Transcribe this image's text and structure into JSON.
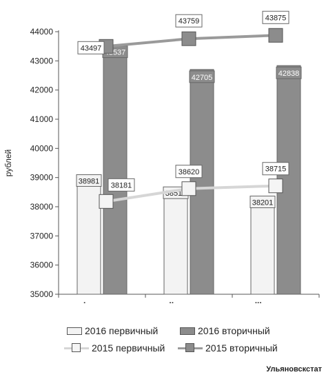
{
  "chart_data": {
    "type": "bar",
    "categories": [
      "I квартал",
      "II квартал",
      "III квартал"
    ],
    "ylabel": "рублей",
    "ylim": [
      35000,
      44000
    ],
    "yticks": [
      35000,
      36000,
      37000,
      38000,
      39000,
      40000,
      41000,
      42000,
      43000,
      44000
    ],
    "bars": [
      {
        "name": "2016 первичный",
        "values": [
          38981,
          38515,
          38201
        ],
        "color": "#f3f3f3"
      },
      {
        "name": "2016 вторичный",
        "values": [
          43537,
          42705,
          42838
        ],
        "color": "#8c8c8c"
      }
    ],
    "lines": [
      {
        "name": "2015 первичный",
        "values": [
          38181,
          38620,
          38715
        ],
        "color": "#d6d6d6",
        "marker_color": "#f5f5f5"
      },
      {
        "name": "2015 вторичный",
        "values": [
          43497,
          43759,
          43875
        ],
        "color": "#9a9a9a",
        "marker_color": "#8c8c8c"
      }
    ],
    "legend_position": "bottom",
    "grid": false
  },
  "legend": {
    "items": [
      {
        "label": "2016 первичный"
      },
      {
        "label": "2016 вторичный"
      },
      {
        "label": "2015 первичный"
      },
      {
        "label": "2015 вторичный"
      }
    ]
  },
  "source": "Ульяновскстат"
}
